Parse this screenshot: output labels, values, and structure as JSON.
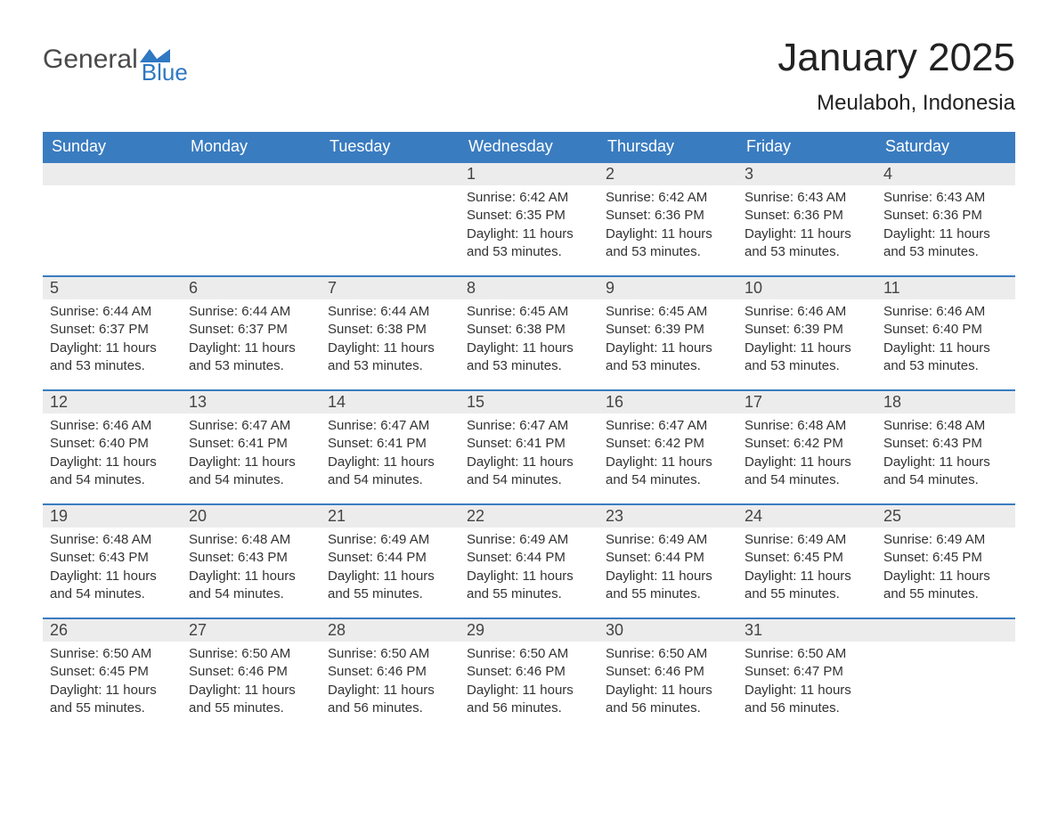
{
  "brand": {
    "name_1": "General",
    "name_2": "Blue"
  },
  "title": "January 2025",
  "location": "Meulaboh, Indonesia",
  "colors": {
    "header_bg": "#3a7cc0",
    "header_text": "#ffffff",
    "daynum_bg": "#ececec",
    "daynum_border": "#3a7cc0",
    "body_text": "#333333",
    "page_bg": "#ffffff",
    "logo_gray": "#4a4a4a",
    "logo_blue": "#2f78c2"
  },
  "weekdays": [
    "Sunday",
    "Monday",
    "Tuesday",
    "Wednesday",
    "Thursday",
    "Friday",
    "Saturday"
  ],
  "labels": {
    "sunrise": "Sunrise",
    "sunset": "Sunset",
    "daylight": "Daylight"
  },
  "weeks": [
    [
      {
        "empty": true
      },
      {
        "empty": true
      },
      {
        "empty": true
      },
      {
        "day": 1,
        "sunrise": "6:42 AM",
        "sunset": "6:35 PM",
        "daylight": "11 hours and 53 minutes."
      },
      {
        "day": 2,
        "sunrise": "6:42 AM",
        "sunset": "6:36 PM",
        "daylight": "11 hours and 53 minutes."
      },
      {
        "day": 3,
        "sunrise": "6:43 AM",
        "sunset": "6:36 PM",
        "daylight": "11 hours and 53 minutes."
      },
      {
        "day": 4,
        "sunrise": "6:43 AM",
        "sunset": "6:36 PM",
        "daylight": "11 hours and 53 minutes."
      }
    ],
    [
      {
        "day": 5,
        "sunrise": "6:44 AM",
        "sunset": "6:37 PM",
        "daylight": "11 hours and 53 minutes."
      },
      {
        "day": 6,
        "sunrise": "6:44 AM",
        "sunset": "6:37 PM",
        "daylight": "11 hours and 53 minutes."
      },
      {
        "day": 7,
        "sunrise": "6:44 AM",
        "sunset": "6:38 PM",
        "daylight": "11 hours and 53 minutes."
      },
      {
        "day": 8,
        "sunrise": "6:45 AM",
        "sunset": "6:38 PM",
        "daylight": "11 hours and 53 minutes."
      },
      {
        "day": 9,
        "sunrise": "6:45 AM",
        "sunset": "6:39 PM",
        "daylight": "11 hours and 53 minutes."
      },
      {
        "day": 10,
        "sunrise": "6:46 AM",
        "sunset": "6:39 PM",
        "daylight": "11 hours and 53 minutes."
      },
      {
        "day": 11,
        "sunrise": "6:46 AM",
        "sunset": "6:40 PM",
        "daylight": "11 hours and 53 minutes."
      }
    ],
    [
      {
        "day": 12,
        "sunrise": "6:46 AM",
        "sunset": "6:40 PM",
        "daylight": "11 hours and 54 minutes."
      },
      {
        "day": 13,
        "sunrise": "6:47 AM",
        "sunset": "6:41 PM",
        "daylight": "11 hours and 54 minutes."
      },
      {
        "day": 14,
        "sunrise": "6:47 AM",
        "sunset": "6:41 PM",
        "daylight": "11 hours and 54 minutes."
      },
      {
        "day": 15,
        "sunrise": "6:47 AM",
        "sunset": "6:41 PM",
        "daylight": "11 hours and 54 minutes."
      },
      {
        "day": 16,
        "sunrise": "6:47 AM",
        "sunset": "6:42 PM",
        "daylight": "11 hours and 54 minutes."
      },
      {
        "day": 17,
        "sunrise": "6:48 AM",
        "sunset": "6:42 PM",
        "daylight": "11 hours and 54 minutes."
      },
      {
        "day": 18,
        "sunrise": "6:48 AM",
        "sunset": "6:43 PM",
        "daylight": "11 hours and 54 minutes."
      }
    ],
    [
      {
        "day": 19,
        "sunrise": "6:48 AM",
        "sunset": "6:43 PM",
        "daylight": "11 hours and 54 minutes."
      },
      {
        "day": 20,
        "sunrise": "6:48 AM",
        "sunset": "6:43 PM",
        "daylight": "11 hours and 54 minutes."
      },
      {
        "day": 21,
        "sunrise": "6:49 AM",
        "sunset": "6:44 PM",
        "daylight": "11 hours and 55 minutes."
      },
      {
        "day": 22,
        "sunrise": "6:49 AM",
        "sunset": "6:44 PM",
        "daylight": "11 hours and 55 minutes."
      },
      {
        "day": 23,
        "sunrise": "6:49 AM",
        "sunset": "6:44 PM",
        "daylight": "11 hours and 55 minutes."
      },
      {
        "day": 24,
        "sunrise": "6:49 AM",
        "sunset": "6:45 PM",
        "daylight": "11 hours and 55 minutes."
      },
      {
        "day": 25,
        "sunrise": "6:49 AM",
        "sunset": "6:45 PM",
        "daylight": "11 hours and 55 minutes."
      }
    ],
    [
      {
        "day": 26,
        "sunrise": "6:50 AM",
        "sunset": "6:45 PM",
        "daylight": "11 hours and 55 minutes."
      },
      {
        "day": 27,
        "sunrise": "6:50 AM",
        "sunset": "6:46 PM",
        "daylight": "11 hours and 55 minutes."
      },
      {
        "day": 28,
        "sunrise": "6:50 AM",
        "sunset": "6:46 PM",
        "daylight": "11 hours and 56 minutes."
      },
      {
        "day": 29,
        "sunrise": "6:50 AM",
        "sunset": "6:46 PM",
        "daylight": "11 hours and 56 minutes."
      },
      {
        "day": 30,
        "sunrise": "6:50 AM",
        "sunset": "6:46 PM",
        "daylight": "11 hours and 56 minutes."
      },
      {
        "day": 31,
        "sunrise": "6:50 AM",
        "sunset": "6:47 PM",
        "daylight": "11 hours and 56 minutes."
      },
      {
        "empty": true
      }
    ]
  ]
}
